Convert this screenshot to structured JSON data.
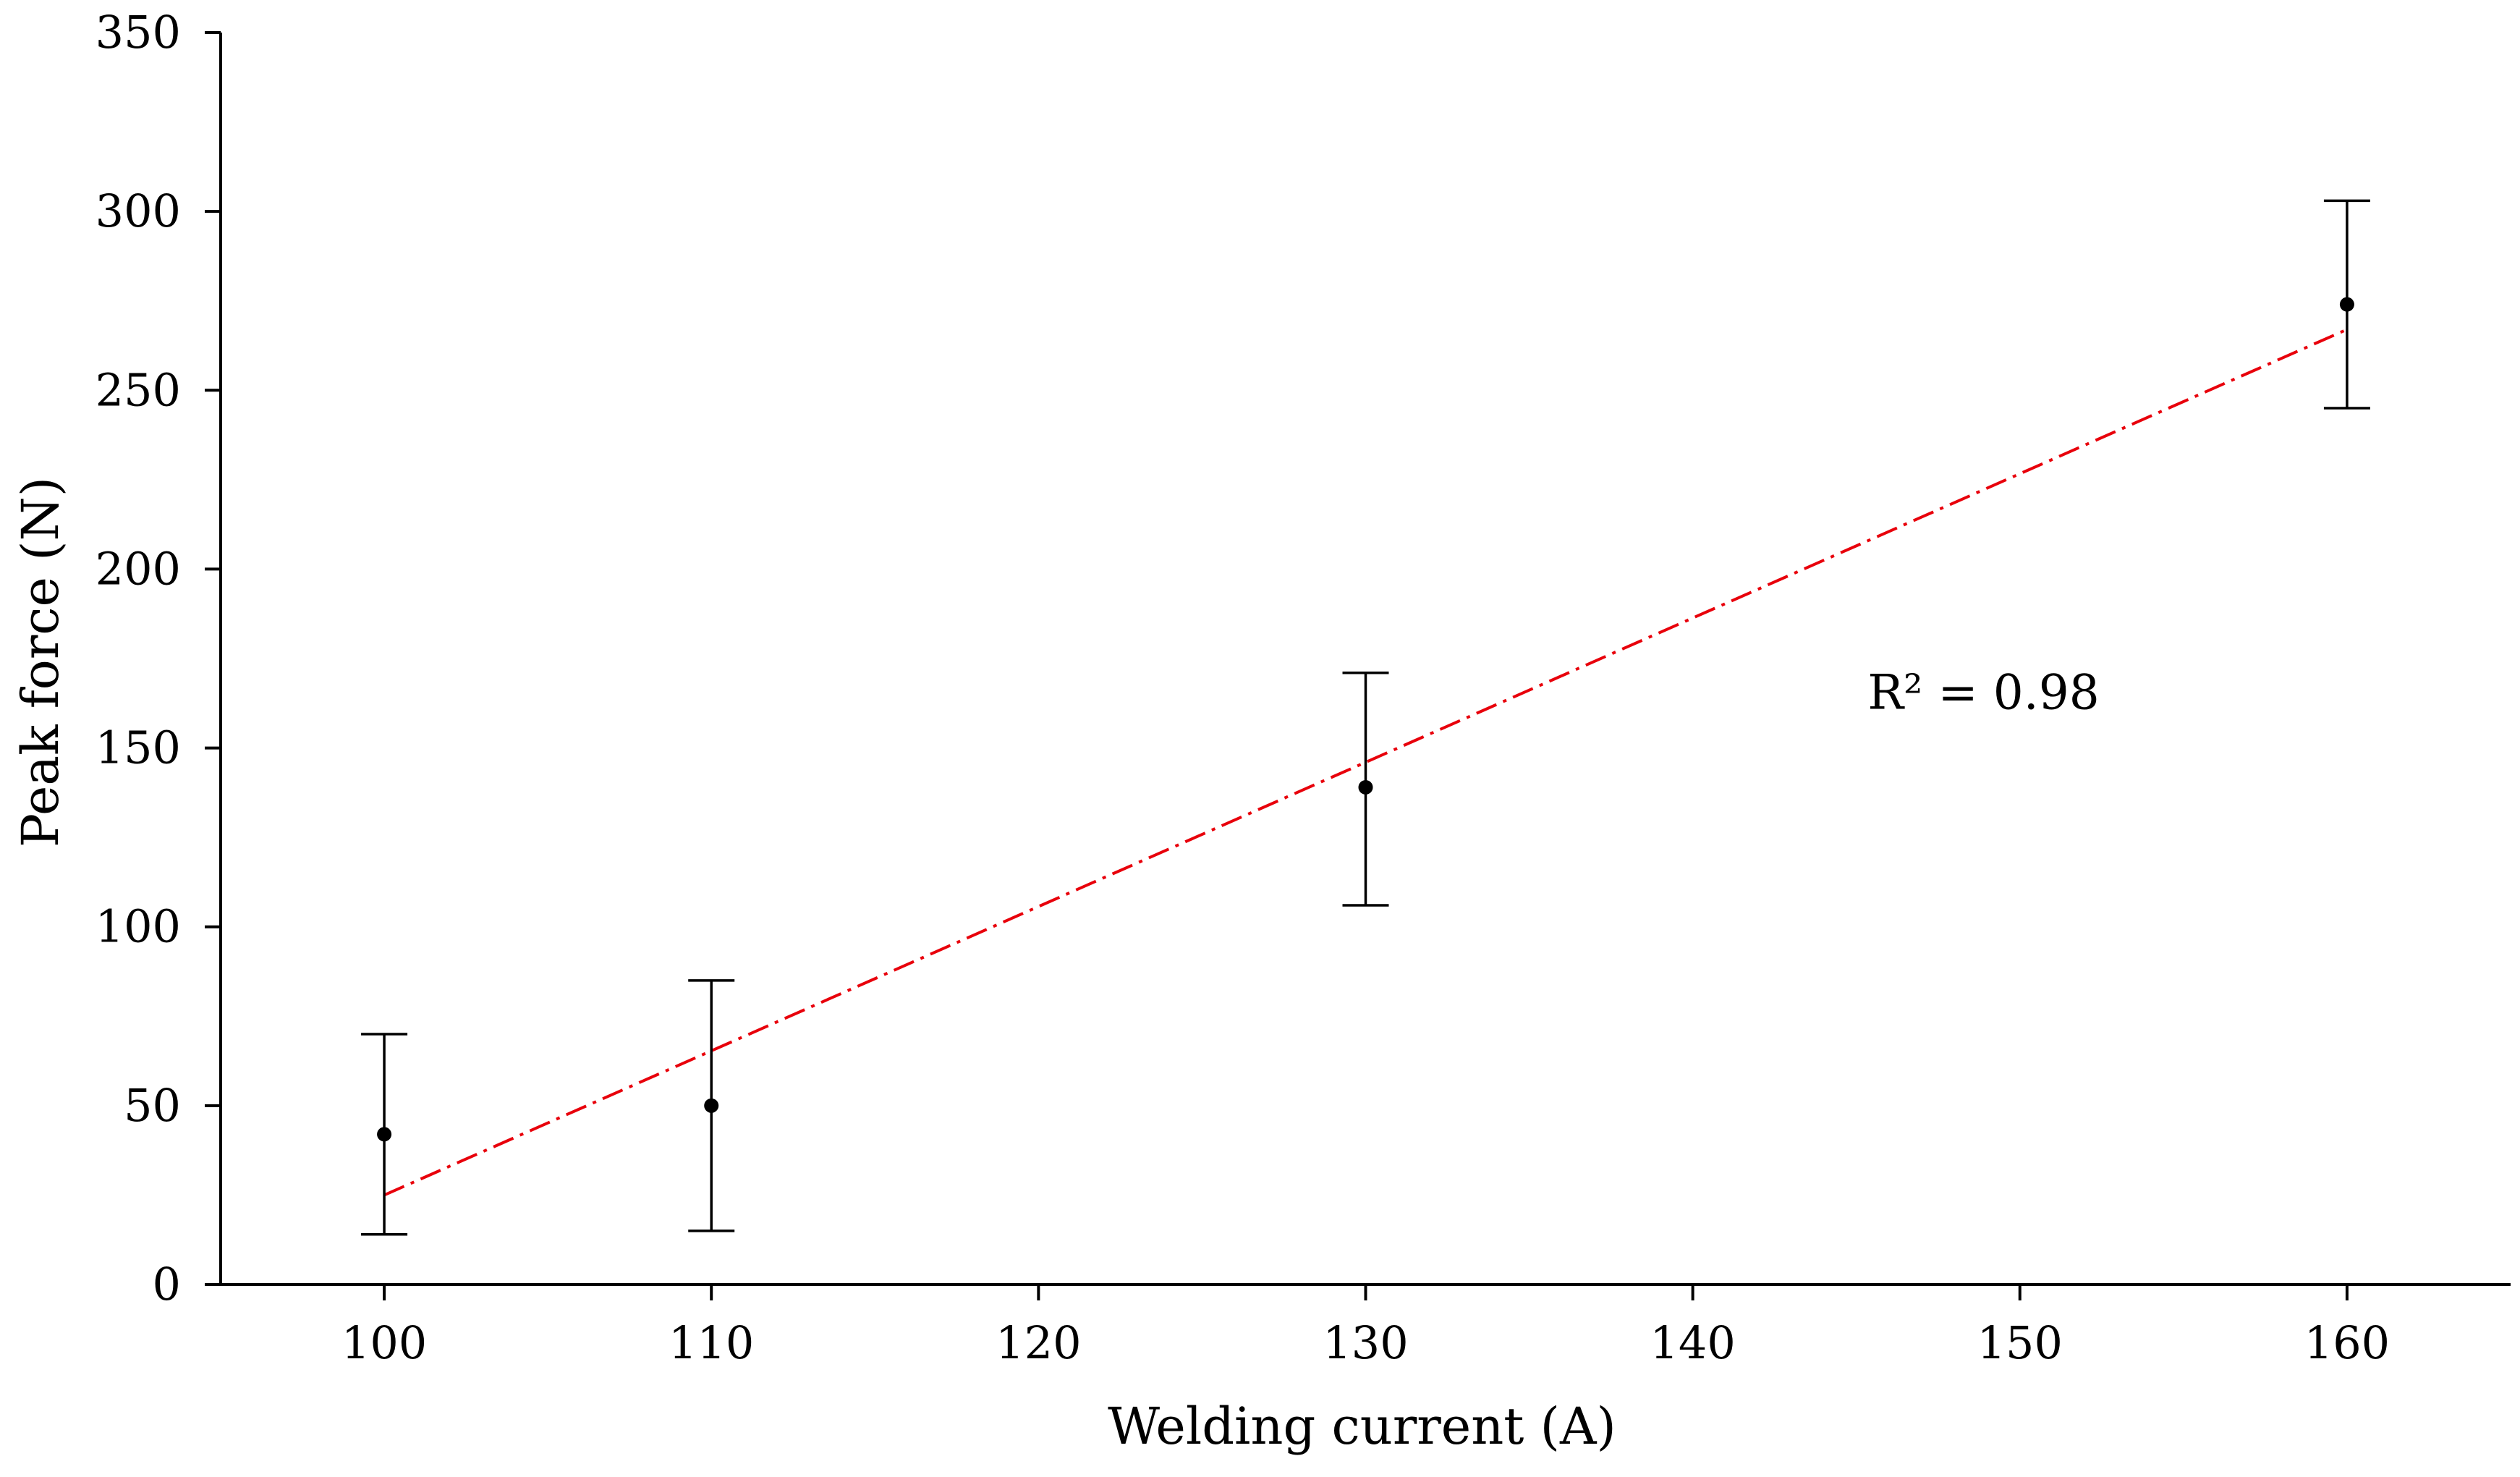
{
  "chart_data": {
    "type": "scatter",
    "title": "",
    "xlabel": "Welding current (A)",
    "ylabel": "Peak force (N)",
    "xlim": [
      95,
      165
    ],
    "ylim": [
      0,
      350
    ],
    "xticks": [
      100,
      110,
      120,
      130,
      140,
      150,
      160
    ],
    "yticks": [
      0,
      50,
      100,
      150,
      200,
      250,
      300,
      350
    ],
    "grid": false,
    "series": [
      {
        "x": [
          100,
          110,
          130,
          160
        ],
        "y": [
          42,
          50,
          139,
          274
        ],
        "error_low": [
          14,
          15,
          106,
          245
        ],
        "error_high": [
          70,
          85,
          171,
          303
        ],
        "marker_color": "#000000"
      }
    ],
    "trendline": {
      "x": [
        100,
        160
      ],
      "y": [
        25,
        267
      ],
      "color": "#e8000b",
      "style": "dash-dot"
    },
    "annotations": [
      {
        "text": "R² = 0.98",
        "x": 148,
        "y": 165
      }
    ]
  }
}
